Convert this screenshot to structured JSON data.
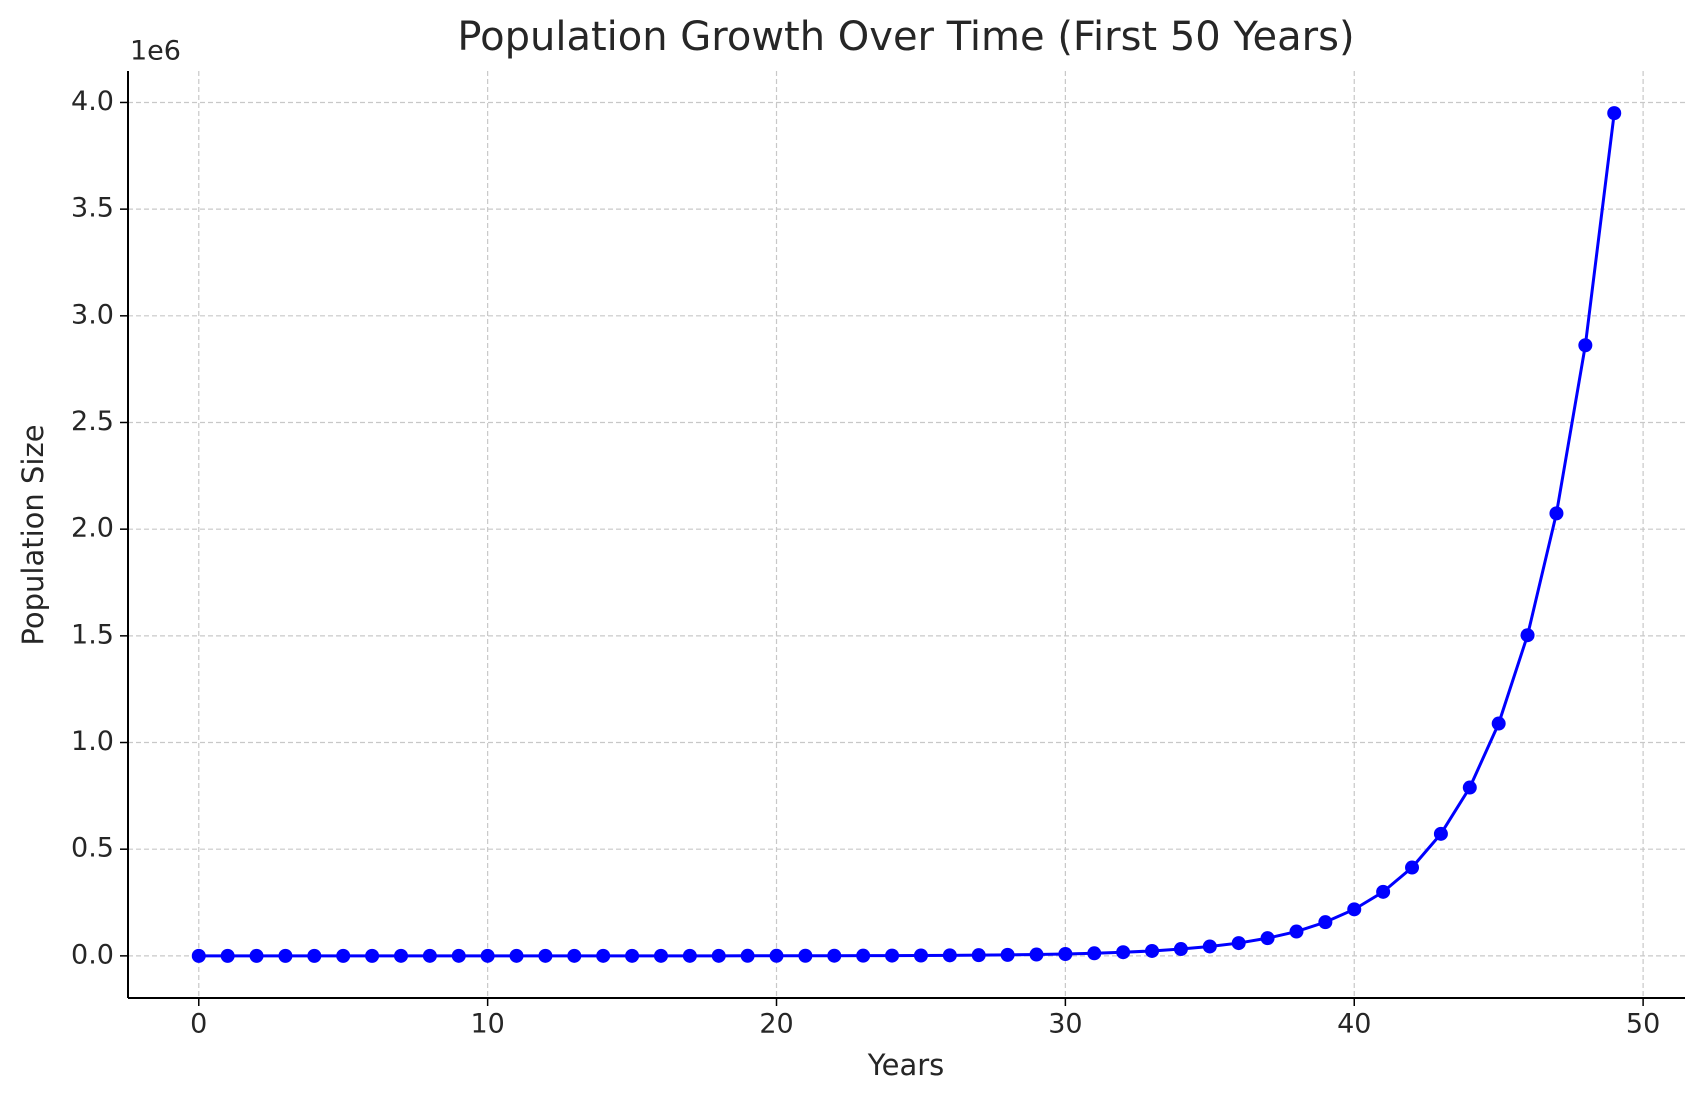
{
  "chart_data": {
    "type": "line",
    "title": "Population Growth Over Time (First 50 Years)",
    "x_label": "Years",
    "y_label": "Population Size",
    "y_offset_label": "1e6",
    "x": [
      0,
      1,
      2,
      3,
      4,
      5,
      6,
      7,
      8,
      9,
      10,
      11,
      12,
      13,
      14,
      15,
      16,
      17,
      18,
      19,
      20,
      21,
      22,
      23,
      24,
      25,
      26,
      27,
      28,
      29,
      30,
      31,
      32,
      33,
      34,
      35,
      36,
      37,
      38,
      39,
      40,
      41,
      42,
      43,
      44,
      45,
      46,
      47,
      48,
      49
    ],
    "series": [
      {
        "name": "Population",
        "color": "#0000ff",
        "values": [
          1,
          1,
          1,
          1,
          2,
          3,
          4,
          5,
          7,
          10,
          15,
          20,
          25,
          35,
          50,
          70,
          100,
          130,
          180,
          250,
          350,
          500,
          700,
          900,
          1300,
          1700,
          2400,
          3300,
          4600,
          6300,
          8700,
          12000,
          17000,
          23000,
          32000,
          44000,
          60000,
          83000,
          114000,
          158000,
          218000,
          300000,
          414000,
          572000,
          789000,
          1089000,
          1503000,
          2074000,
          2862000,
          3950000
        ]
      }
    ],
    "xlim": [
      -2.45,
      51.45
    ],
    "xticks": [
      0,
      10,
      20,
      30,
      40,
      50
    ],
    "ylim": [
      -197500,
      4147500
    ],
    "yticks": [
      {
        "value": 0,
        "label": "0.0"
      },
      {
        "value": 500000,
        "label": "0.5"
      },
      {
        "value": 1000000,
        "label": "1.0"
      },
      {
        "value": 1500000,
        "label": "1.5"
      },
      {
        "value": 2000000,
        "label": "2.0"
      },
      {
        "value": 2500000,
        "label": "2.5"
      },
      {
        "value": 3000000,
        "label": "3.0"
      },
      {
        "value": 3500000,
        "label": "3.5"
      },
      {
        "value": 4000000,
        "label": "4.0"
      }
    ],
    "grid": true
  }
}
